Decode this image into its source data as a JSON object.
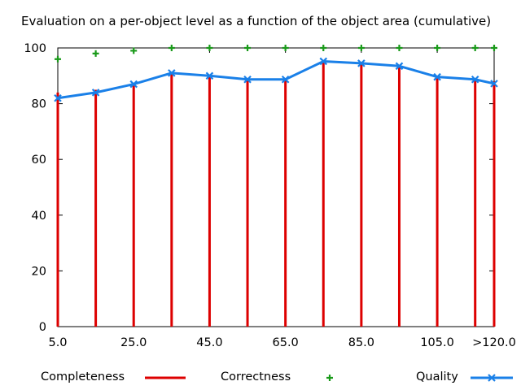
{
  "chart_data": {
    "type": "bar+line",
    "title": "Evaluation on a per-object level as a function of the object area (cumulative)",
    "xlabel": "",
    "ylabel": "",
    "x_values": [
      5,
      15,
      25,
      35,
      45,
      55,
      65,
      75,
      85,
      95,
      105,
      115,
      120
    ],
    "xtick_values": [
      5,
      25,
      45,
      65,
      85,
      105,
      120
    ],
    "xtick_labels": [
      "5.0",
      "25.0",
      "45.0",
      "65.0",
      "85.0",
      "105.0",
      ">120.0"
    ],
    "xlim": [
      5,
      120
    ],
    "ylim": [
      0,
      100
    ],
    "yticks": [
      0,
      20,
      40,
      60,
      80,
      100
    ],
    "grid": false,
    "legend_position": "bottom",
    "series": [
      {
        "name": "Completeness",
        "style": "impulses",
        "color": "#dd0000",
        "values": [
          84,
          85,
          87,
          91,
          90,
          89,
          89,
          95,
          95,
          94,
          90,
          89,
          88
        ]
      },
      {
        "name": "Correctness",
        "style": "points-plus",
        "color": "#1a9a1a",
        "values": [
          96,
          98,
          99,
          100,
          100,
          100,
          100,
          100,
          100,
          100,
          100,
          100,
          100
        ]
      },
      {
        "name": "Quality",
        "style": "lines-x",
        "color": "#1a80e8",
        "values": [
          82,
          84,
          87,
          91,
          90,
          88.7,
          88.7,
          95.2,
          94.5,
          93.5,
          89.6,
          88.7,
          87.2
        ]
      }
    ]
  }
}
